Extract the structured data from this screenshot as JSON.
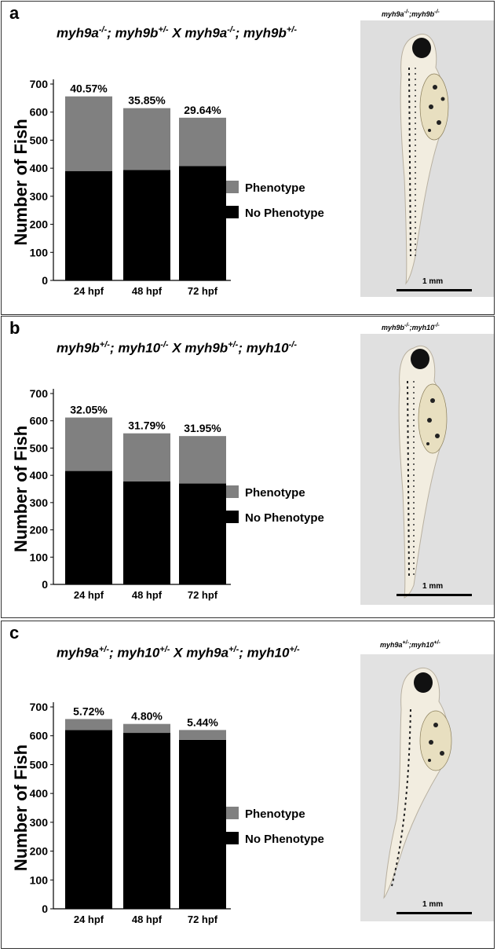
{
  "colors": {
    "phenotype": "#808080",
    "no_phenotype": "#000000",
    "frame": "#333333"
  },
  "chart_data": [
    {
      "type": "bar",
      "panel": "a",
      "title_parts": [
        "myh9a",
        "-/-",
        "; myh9b",
        "+/-",
        " X myh9a",
        "-/-",
        "; myh9b",
        "+/-"
      ],
      "photo_caption_parts": [
        "myh9a",
        "-/-",
        ";myh9b",
        "-/-"
      ],
      "scale_label": "1 mm",
      "ylabel": "Number of Fish",
      "ylim": [
        0,
        700
      ],
      "yticks": [
        0,
        100,
        200,
        300,
        400,
        500,
        600,
        700
      ],
      "categories": [
        "24 hpf",
        "48 hpf",
        "72 hpf"
      ],
      "stacked": true,
      "series": [
        {
          "name": "No Phenotype",
          "values": [
            390,
            394,
            408
          ]
        },
        {
          "name": "Phenotype",
          "values": [
            266,
            220,
            172
          ]
        }
      ],
      "bar_labels": [
        "40.57%",
        "35.85%",
        "29.64%"
      ],
      "legend": [
        "Phenotype",
        "No Phenotype"
      ],
      "legend_position": "right"
    },
    {
      "type": "bar",
      "panel": "b",
      "title_parts": [
        "myh9b",
        "+/-",
        "; myh10",
        "-/-",
        " X myh9b",
        "+/-",
        "; myh10",
        "-/-"
      ],
      "photo_caption_parts": [
        "myh9b",
        "-/-",
        ";myh10",
        "-/-"
      ],
      "scale_label": "1 mm",
      "ylabel": "Number of Fish",
      "ylim": [
        0,
        700
      ],
      "yticks": [
        0,
        100,
        200,
        300,
        400,
        500,
        600,
        700
      ],
      "categories": [
        "24 hpf",
        "48 hpf",
        "72 hpf"
      ],
      "stacked": true,
      "series": [
        {
          "name": "No Phenotype",
          "values": [
            416,
            378,
            370
          ]
        },
        {
          "name": "Phenotype",
          "values": [
            196,
            176,
            174
          ]
        }
      ],
      "bar_labels": [
        "32.05%",
        "31.79%",
        "31.95%"
      ],
      "legend": [
        "Phenotype",
        "No Phenotype"
      ],
      "legend_position": "right"
    },
    {
      "type": "bar",
      "panel": "c",
      "title_parts": [
        "myh9a",
        "+/-",
        "; myh10",
        "+/-",
        " X myh9a",
        "+/-",
        "; myh10",
        "+/-"
      ],
      "photo_caption_parts": [
        "myh9a",
        "+/-",
        ";myh10",
        "+/-"
      ],
      "scale_label": "1 mm",
      "ylabel": "Number of Fish",
      "ylim": [
        0,
        700
      ],
      "yticks": [
        0,
        100,
        200,
        300,
        400,
        500,
        600,
        700
      ],
      "categories": [
        "24 hpf",
        "48 hpf",
        "72 hpf"
      ],
      "stacked": true,
      "series": [
        {
          "name": "No Phenotype",
          "values": [
            620,
            610,
            586
          ]
        },
        {
          "name": "Phenotype",
          "values": [
            38,
            31,
            34
          ]
        }
      ],
      "bar_labels": [
        "5.72%",
        "4.80%",
        "5.44%"
      ],
      "legend": [
        "Phenotype",
        "No Phenotype"
      ],
      "legend_position": "right"
    }
  ]
}
